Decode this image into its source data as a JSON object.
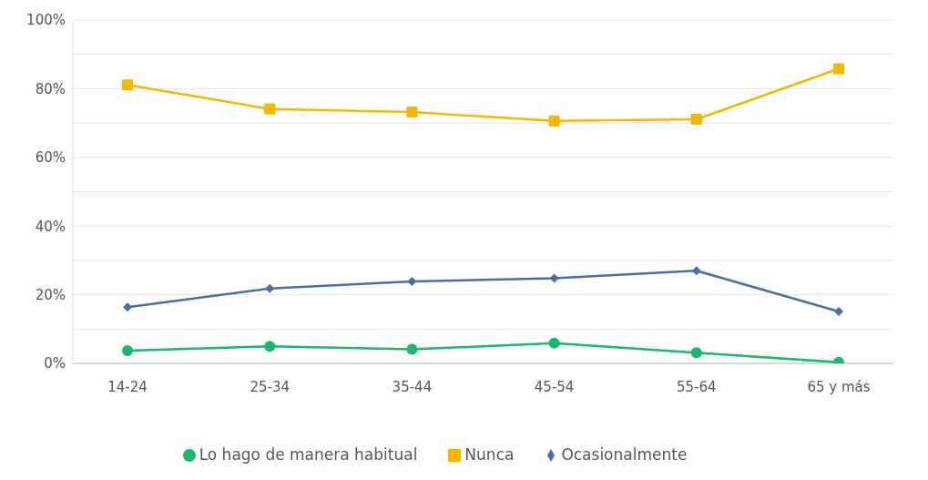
{
  "chart_data": {
    "type": "line",
    "categories": [
      "14-24",
      "25-34",
      "35-44",
      "45-54",
      "55-64",
      "65 y más"
    ],
    "series": [
      {
        "name": "Lo hago de manera habitual",
        "color": "#1bb76e",
        "marker": "circle",
        "values": [
          3.7,
          5.0,
          4.1,
          5.9,
          3.1,
          0.3
        ]
      },
      {
        "name": "Ocasionalmente",
        "color": "#4a6fa5",
        "marker": "diamond",
        "values": [
          16.4,
          21.8,
          23.9,
          24.8,
          27.0,
          15.1
        ]
      },
      {
        "name": "Nunca",
        "color": "#f5b800",
        "marker": "square",
        "values": [
          81.1,
          74.1,
          73.2,
          70.6,
          71.1,
          85.8
        ]
      }
    ],
    "ylim": [
      0,
      100
    ],
    "yticks": [
      {
        "value": 0,
        "label": "0%"
      },
      {
        "value": 10,
        "label": null
      },
      {
        "value": 20,
        "label": "20%"
      },
      {
        "value": 30,
        "label": null
      },
      {
        "value": 40,
        "label": "40%"
      },
      {
        "value": 50,
        "label": null
      },
      {
        "value": 60,
        "label": "60%"
      },
      {
        "value": 70,
        "label": null
      },
      {
        "value": 80,
        "label": "80%"
      },
      {
        "value": 90,
        "label": null
      },
      {
        "value": 100,
        "label": "100%"
      }
    ],
    "grid": "y",
    "legend": "bottom",
    "line_style": "solid"
  }
}
